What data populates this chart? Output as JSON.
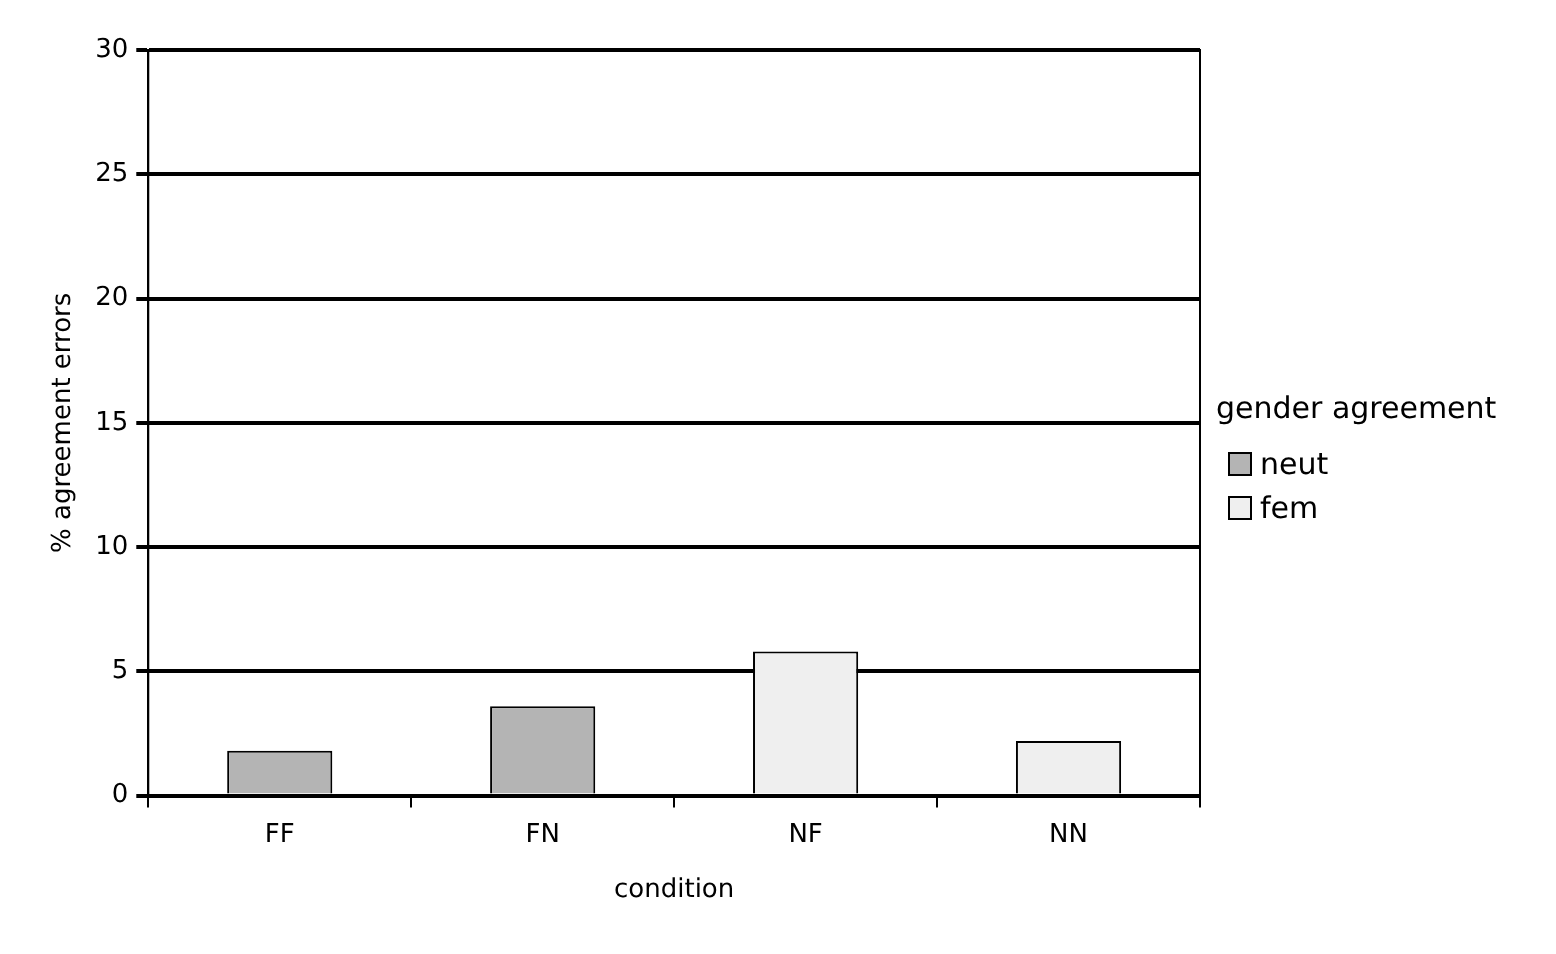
{
  "chart_data": {
    "type": "bar",
    "xlabel": "condition",
    "ylabel": "% agreement errors",
    "legend_title": "gender agreement",
    "categories": [
      "FF",
      "FN",
      "NF",
      "NN"
    ],
    "series": [
      {
        "name": "neut",
        "color": "#b4b4b4",
        "values": [
          1.8,
          3.6,
          null,
          null
        ]
      },
      {
        "name": "fem",
        "color": "#efefef",
        "values": [
          null,
          null,
          5.8,
          2.2
        ]
      }
    ],
    "ylim": [
      0,
      30
    ],
    "yticks": [
      0,
      5,
      10,
      15,
      20,
      25,
      30
    ],
    "grid": "y",
    "legend": "right"
  }
}
